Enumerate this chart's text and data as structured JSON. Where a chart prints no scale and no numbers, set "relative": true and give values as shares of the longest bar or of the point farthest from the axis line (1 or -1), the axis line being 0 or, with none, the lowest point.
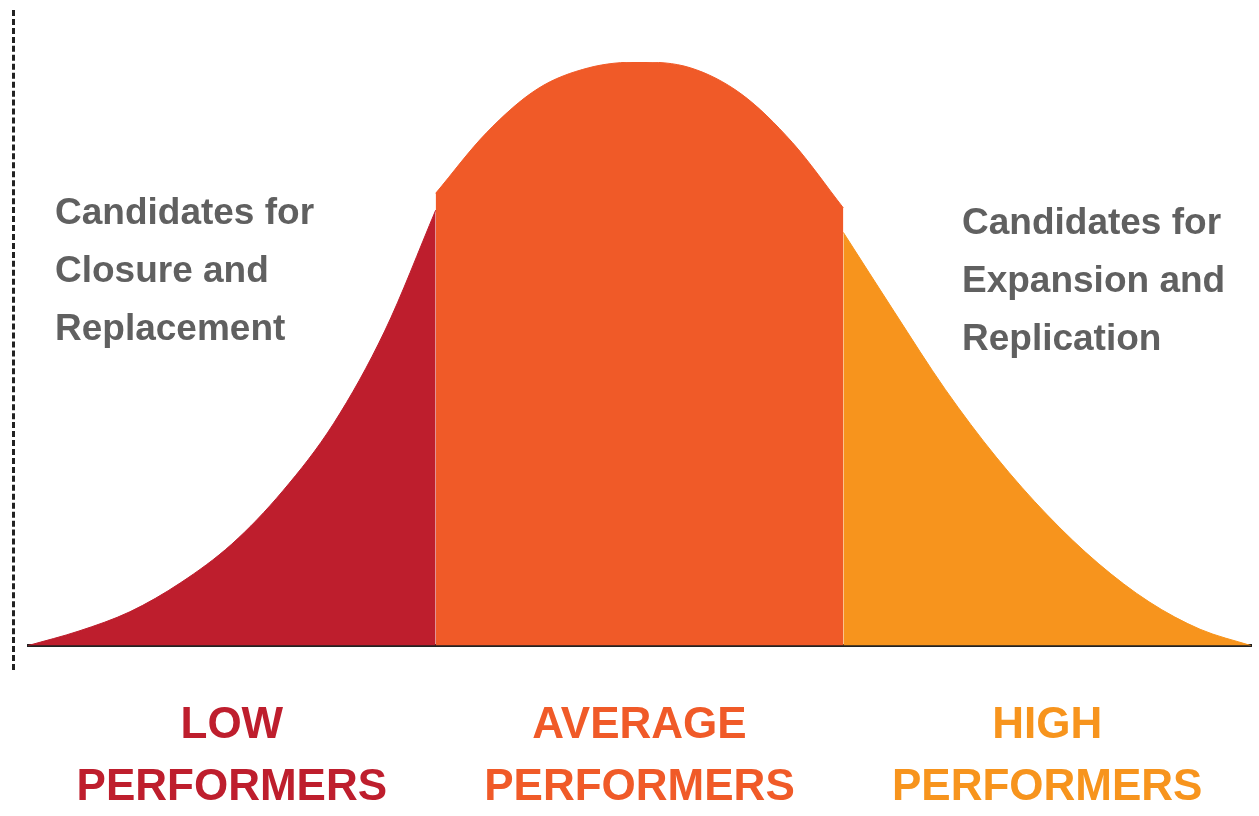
{
  "chart_data": {
    "type": "area",
    "relative": true,
    "categories": [
      null,
      null,
      null,
      null,
      null,
      null,
      null,
      null,
      null,
      null,
      null,
      null,
      null,
      null,
      null,
      null,
      null,
      null,
      null,
      null,
      null,
      null,
      null,
      null,
      null
    ],
    "series": [
      {
        "name": "LOW PERFORMERS",
        "color": "#be1e2d",
        "values": [
          0,
          0.025,
          0.058,
          0.108,
          0.174,
          0.265,
          0.381,
          0.539,
          0.746,
          null,
          null,
          null,
          null,
          null,
          null,
          null,
          null,
          null,
          null,
          null,
          null,
          null,
          null,
          null,
          null
        ]
      },
      {
        "name": "AVERAGE PERFORMERS",
        "color": "#f05a28",
        "values": [
          null,
          null,
          null,
          null,
          null,
          null,
          null,
          null,
          0.775,
          0.879,
          0.954,
          0.99,
          1,
          0.99,
          0.945,
          0.862,
          0.75,
          null,
          null,
          null,
          null,
          null,
          null,
          null,
          null
        ]
      },
      {
        "name": "HIGH PERFORMERS",
        "color": "#f7941d",
        "values": [
          null,
          null,
          null,
          null,
          null,
          null,
          null,
          null,
          null,
          null,
          null,
          null,
          null,
          null,
          null,
          null,
          0.708,
          0.572,
          0.439,
          0.323,
          0.224,
          0.141,
          0.075,
          0.028,
          0
        ]
      }
    ],
    "annotations": [
      "Candidates for Closure and Replacement",
      "Candidates for Expansion and Replication"
    ],
    "grid": false,
    "legend": false
  }
}
